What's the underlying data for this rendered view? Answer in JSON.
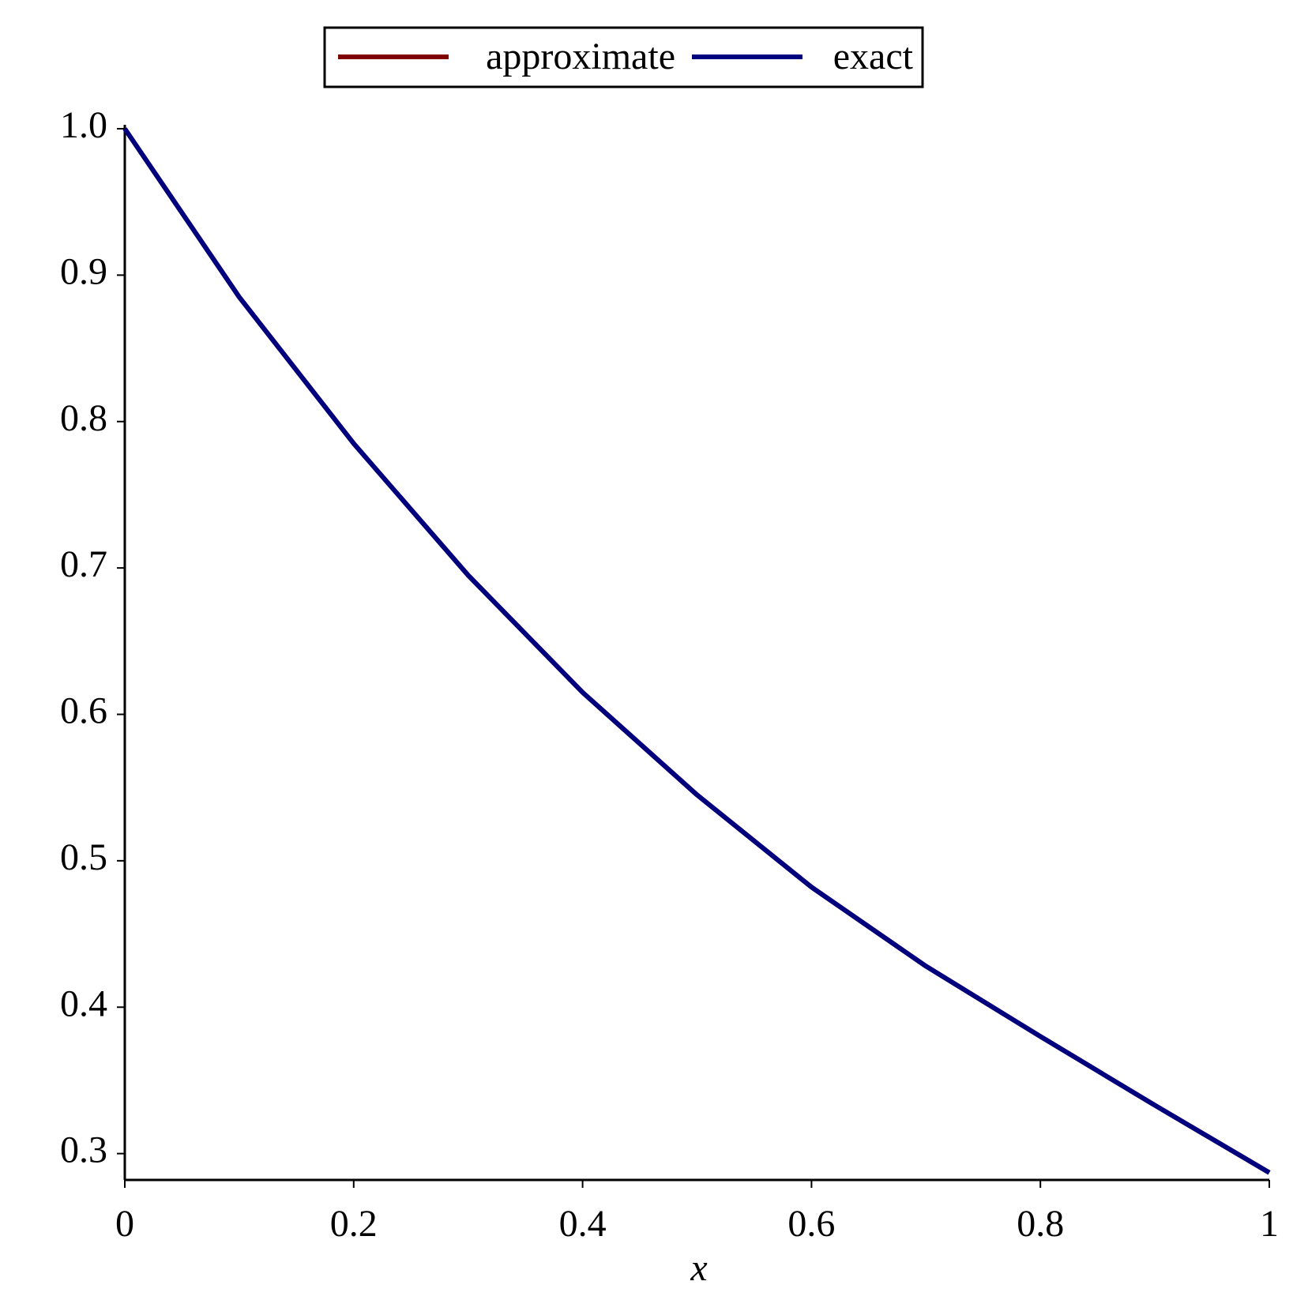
{
  "chart_data": {
    "type": "line",
    "x_label": "x",
    "x": [
      0,
      0.1,
      0.2,
      0.3,
      0.4,
      0.5,
      0.6,
      0.7,
      0.8,
      0.9,
      1
    ],
    "series": [
      {
        "name": "approximate",
        "color": "#7f0000",
        "values": [
          1.0,
          0.885,
          0.785,
          0.695,
          0.615,
          0.545,
          0.482,
          0.428,
          0.38,
          0.333,
          0.287
        ]
      },
      {
        "name": "exact",
        "color": "#00007f",
        "values": [
          1.0,
          0.885,
          0.785,
          0.695,
          0.615,
          0.545,
          0.482,
          0.428,
          0.38,
          0.333,
          0.287
        ]
      }
    ],
    "xlim": [
      0,
      1
    ],
    "xticks": [
      0,
      0.2,
      0.4,
      0.6,
      0.8,
      1
    ],
    "ylim": [
      0.282,
      1.0
    ],
    "yticks": [
      0.3,
      0.4,
      0.5,
      0.6,
      0.7,
      0.8,
      0.9,
      {
        "value": 1,
        "label": "1.0"
      }
    ],
    "legend": "top"
  }
}
